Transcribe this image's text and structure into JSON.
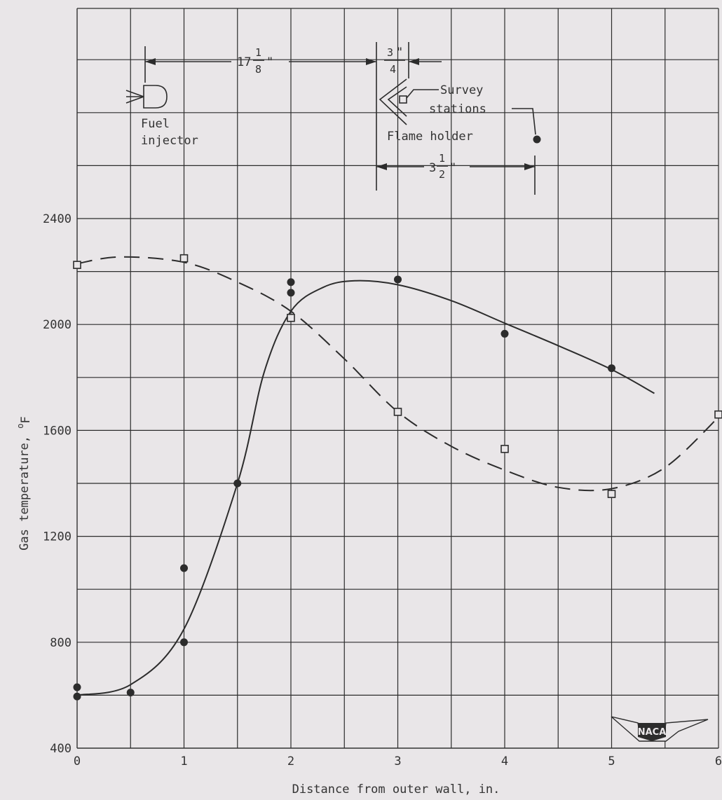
{
  "chart_data": {
    "type": "scatter",
    "xlabel": "Distance from outer wall, in.",
    "ylabel": "Gas temperature, °F",
    "ylabel_main": "Gas temperature, ",
    "ylabel_unit": "o",
    "ylabel_unit_sub": "F",
    "xlim": [
      0,
      6
    ],
    "ylim": [
      400,
      2400
    ],
    "x_ticks": [
      "0",
      "1",
      "2",
      "3",
      "4",
      "5",
      "6"
    ],
    "y_ticks": [
      "400",
      "800",
      "1200",
      "1600",
      "2000",
      "2400"
    ],
    "grid": true,
    "series": [
      {
        "marker": "circle",
        "line": "solid",
        "points": [
          {
            "x": 0.0,
            "y": 630
          },
          {
            "x": 0.0,
            "y": 595
          },
          {
            "x": 0.5,
            "y": 610
          },
          {
            "x": 1.0,
            "y": 1080
          },
          {
            "x": 1.0,
            "y": 800
          },
          {
            "x": 1.5,
            "y": 1400
          },
          {
            "x": 2.0,
            "y": 2160
          },
          {
            "x": 2.0,
            "y": 2120
          },
          {
            "x": 3.0,
            "y": 2170
          },
          {
            "x": 4.0,
            "y": 1965
          },
          {
            "x": 5.0,
            "y": 1835
          }
        ],
        "curve": [
          {
            "x": 0.0,
            "y": 600
          },
          {
            "x": 0.5,
            "y": 640
          },
          {
            "x": 1.0,
            "y": 850
          },
          {
            "x": 1.5,
            "y": 1400
          },
          {
            "x": 1.75,
            "y": 1820
          },
          {
            "x": 2.0,
            "y": 2050
          },
          {
            "x": 2.3,
            "y": 2140
          },
          {
            "x": 2.6,
            "y": 2165
          },
          {
            "x": 3.0,
            "y": 2150
          },
          {
            "x": 3.5,
            "y": 2090
          },
          {
            "x": 4.0,
            "y": 2005
          },
          {
            "x": 4.5,
            "y": 1920
          },
          {
            "x": 5.0,
            "y": 1830
          },
          {
            "x": 5.4,
            "y": 1740
          }
        ]
      },
      {
        "marker": "square",
        "line": "dashed",
        "points": [
          {
            "x": 0.0,
            "y": 2225
          },
          {
            "x": 1.0,
            "y": 2250
          },
          {
            "x": 2.0,
            "y": 2025
          },
          {
            "x": 3.0,
            "y": 1670
          },
          {
            "x": 4.0,
            "y": 1530
          },
          {
            "x": 5.0,
            "y": 1360
          },
          {
            "x": 6.0,
            "y": 1660
          }
        ],
        "curve": [
          {
            "x": 0.0,
            "y": 2230
          },
          {
            "x": 0.4,
            "y": 2255
          },
          {
            "x": 1.0,
            "y": 2235
          },
          {
            "x": 1.5,
            "y": 2160
          },
          {
            "x": 2.0,
            "y": 2050
          },
          {
            "x": 2.5,
            "y": 1870
          },
          {
            "x": 3.0,
            "y": 1670
          },
          {
            "x": 3.5,
            "y": 1540
          },
          {
            "x": 4.0,
            "y": 1450
          },
          {
            "x": 4.5,
            "y": 1385
          },
          {
            "x": 5.0,
            "y": 1380
          },
          {
            "x": 5.5,
            "y": 1460
          },
          {
            "x": 6.0,
            "y": 1650
          }
        ]
      }
    ]
  },
  "diagram": {
    "dim1_whole": "17",
    "dim1_num": "1",
    "dim1_den": "8",
    "dim1_inch": "\"",
    "dim2_num": "3",
    "dim2_den": "4",
    "dim2_inch": "\"",
    "dim3_whole": "3",
    "dim3_num": "1",
    "dim3_den": "2",
    "dim3_inch": "\"",
    "fuel_line1": "Fuel",
    "fuel_line2": "injector",
    "flame_holder": "Flame holder",
    "survey_line1": "Survey",
    "survey_line2": "stations",
    "logo_text": "NACA"
  }
}
